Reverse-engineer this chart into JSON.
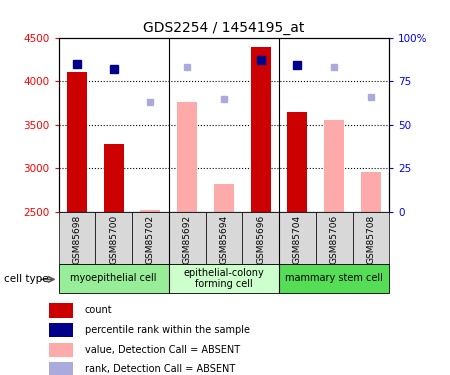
{
  "title": "GDS2254 / 1454195_at",
  "samples": [
    "GSM85698",
    "GSM85700",
    "GSM85702",
    "GSM85692",
    "GSM85694",
    "GSM85696",
    "GSM85704",
    "GSM85706",
    "GSM85708"
  ],
  "count_present": [
    4110,
    3280,
    null,
    null,
    null,
    4390,
    3640,
    null,
    null
  ],
  "count_absent": [
    null,
    null,
    2520,
    3760,
    2820,
    null,
    null,
    3550,
    2960
  ],
  "rank_present": [
    85,
    82,
    null,
    null,
    null,
    87,
    84,
    null,
    null
  ],
  "rank_absent": [
    null,
    null,
    63,
    83,
    65,
    null,
    null,
    83,
    66
  ],
  "ylim": [
    2500,
    4500
  ],
  "y2lim": [
    0,
    100
  ],
  "yticks": [
    2500,
    3000,
    3500,
    4000,
    4500
  ],
  "y2ticks": [
    0,
    25,
    50,
    75,
    100
  ],
  "y2ticklabels": [
    "0",
    "25",
    "50",
    "75",
    "100%"
  ],
  "bar_width": 0.55,
  "color_count_present": "#cc0000",
  "color_count_absent": "#ffaaaa",
  "color_rank_present": "#00008b",
  "color_rank_absent": "#aaaadd",
  "marker_size": 6,
  "cell_groups": [
    {
      "label": "myoepithelial cell",
      "start": 0,
      "end": 3,
      "color": "#98ee98"
    },
    {
      "label": "epithelial-colony\nforming cell",
      "start": 3,
      "end": 6,
      "color": "#ccffcc"
    },
    {
      "label": "mammary stem cell",
      "start": 6,
      "end": 9,
      "color": "#55dd55"
    }
  ],
  "cell_type_label": "cell type",
  "legend_items": [
    {
      "label": "count",
      "color": "#cc0000",
      "type": "rect"
    },
    {
      "label": "percentile rank within the sample",
      "color": "#00008b",
      "type": "rect"
    },
    {
      "label": "value, Detection Call = ABSENT",
      "color": "#ffaaaa",
      "type": "rect"
    },
    {
      "label": "rank, Detection Call = ABSENT",
      "color": "#aaaadd",
      "type": "rect"
    }
  ]
}
